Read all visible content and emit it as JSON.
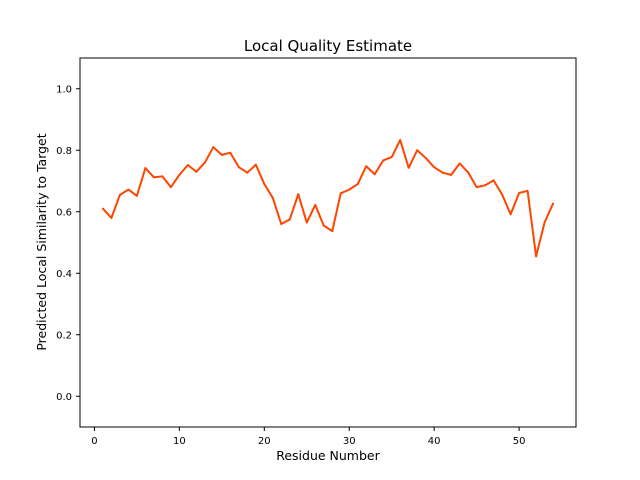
{
  "chart_data": {
    "type": "line",
    "title": "Local Quality Estimate",
    "xlabel": "Residue Number",
    "ylabel": "Predicted Local Similarity to Target",
    "xlim": [
      -1.7,
      56.7
    ],
    "ylim": [
      -0.1,
      1.1
    ],
    "xticks": [
      0,
      10,
      20,
      30,
      40,
      50
    ],
    "xtick_labels": [
      "0",
      "10",
      "20",
      "30",
      "40",
      "50"
    ],
    "yticks": [
      0.0,
      0.2,
      0.4,
      0.6,
      0.8,
      1.0
    ],
    "ytick_labels": [
      "0.0",
      "0.2",
      "0.4",
      "0.6",
      "0.8",
      "1.0"
    ],
    "grid": false,
    "series": [
      {
        "color": "#ff4500",
        "x": [
          1,
          2,
          3,
          4,
          5,
          6,
          7,
          8,
          9,
          10,
          11,
          12,
          13,
          14,
          15,
          16,
          17,
          18,
          19,
          20,
          21,
          22,
          23,
          24,
          25,
          26,
          27,
          28,
          29,
          30,
          31,
          32,
          33,
          34,
          35,
          36,
          37,
          38,
          39,
          40,
          41,
          42,
          43,
          44,
          45,
          46,
          47,
          48,
          49,
          50,
          51,
          52,
          53,
          54
        ],
        "y": [
          0.61,
          0.58,
          0.655,
          0.672,
          0.652,
          0.742,
          0.712,
          0.715,
          0.68,
          0.72,
          0.752,
          0.73,
          0.76,
          0.81,
          0.785,
          0.792,
          0.745,
          0.727,
          0.753,
          0.69,
          0.645,
          0.56,
          0.575,
          0.657,
          0.565,
          0.622,
          0.555,
          0.537,
          0.66,
          0.672,
          0.69,
          0.748,
          0.722,
          0.767,
          0.778,
          0.833,
          0.743,
          0.8,
          0.775,
          0.745,
          0.727,
          0.72,
          0.757,
          0.728,
          0.68,
          0.686,
          0.702,
          0.656,
          0.592,
          0.661,
          0.668,
          0.455,
          0.565,
          0.627
        ]
      }
    ]
  }
}
